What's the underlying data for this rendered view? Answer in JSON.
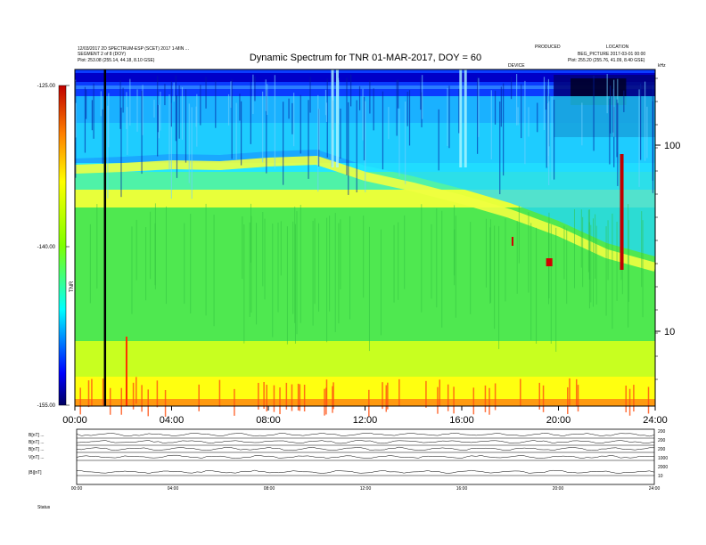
{
  "header": {
    "title": "Dynamic Spectrum for TNR 01-MAR-2017, DOY = 60",
    "left_lines": [
      "12/03/2017 2D SPECTRUM-ESP (SCET) 2017 1-MIN ...",
      "SEGMENT 2 of 8 (DOY)",
      "Plot: 253.08 (255.14, 44.18, 8.10 GSE)"
    ],
    "right_left_line": "PRODUCED",
    "right_lines": [
      "LOCATION",
      "BEG_PICTURE 2017-03-01 00:00",
      "Plot: 255.20 (255.76, 41.09, 8.40 GSE)"
    ],
    "center_marker": "DEVICE",
    "right_marker": "kHz"
  },
  "chart_data": {
    "type": "heatmap",
    "title": "Dynamic Spectrum for TNR 01-MAR-2017, DOY = 60",
    "x_ticks": [
      "00:00",
      "04:00",
      "08:00",
      "12:00",
      "16:00",
      "20:00",
      "24:00"
    ],
    "x_range_hours": [
      0,
      24
    ],
    "y_right_ticks": [
      "100",
      "10"
    ],
    "y_right_scale": "log",
    "colorbar": {
      "ticks": [
        "-125.00",
        "-140.00",
        "-155.00"
      ],
      "range": [
        -155,
        -125
      ],
      "label": "TNR",
      "colors": [
        "#8b0000",
        "#ff0000",
        "#ff7f00",
        "#ffff00",
        "#7fff00",
        "#00ff7f",
        "#00ffff",
        "#0080ff",
        "#0000c0",
        "#000060"
      ]
    },
    "data_gap_hour": 1.2,
    "notable_features": [
      {
        "hour": 22.6,
        "type": "red vertical streak"
      },
      {
        "hour": 19.6,
        "type": "red blob"
      },
      {
        "hour": 18.1,
        "type": "red mark"
      }
    ]
  },
  "lower_panel": {
    "row_labels": [
      "B[nT] ...",
      "B[nT] ...",
      "B[nT] ...",
      "V[nT] ...",
      "|B|[nT]"
    ],
    "right_labels": [
      "200",
      "200",
      "200",
      "1000",
      "2000",
      "10"
    ],
    "x_ticks": [
      "00:00",
      "04:00",
      "08:00",
      "12:00",
      "16:00",
      "20:00",
      "24:00"
    ],
    "footer": "Status"
  },
  "colors": {
    "background": "#ffffff",
    "axis": "#000000"
  }
}
